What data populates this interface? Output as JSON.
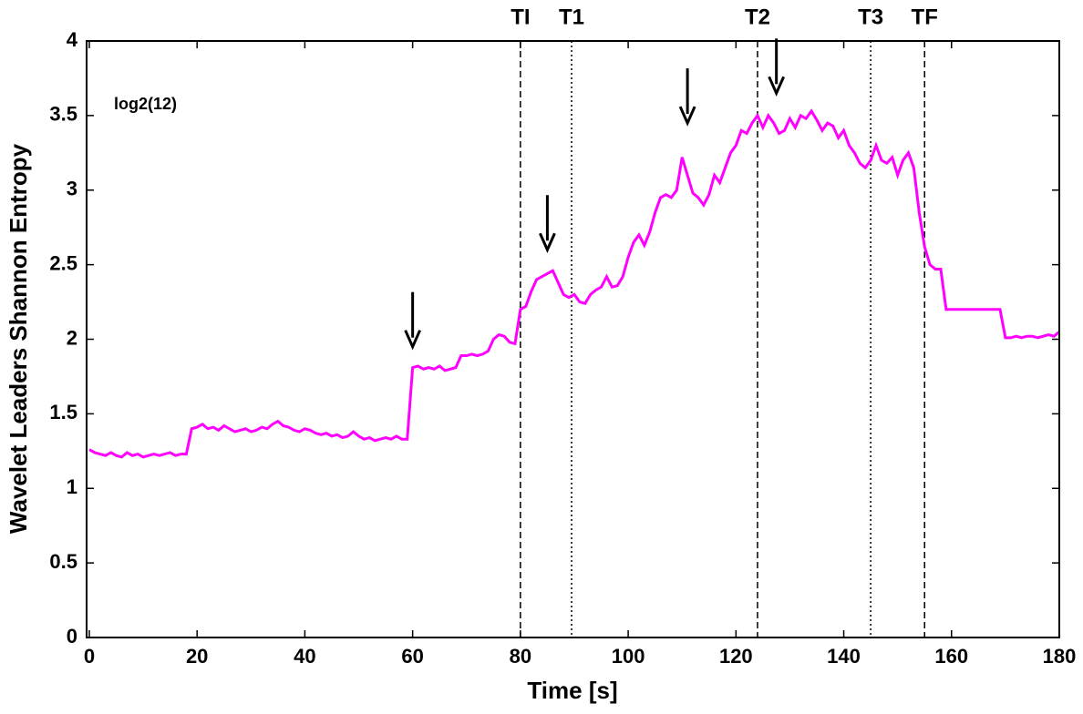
{
  "chart_data": {
    "type": "line",
    "x_label": "Time [s]",
    "y_label": "Wavelet Leaders Shannon Entropy",
    "annotation": "log2(12)",
    "xlim": [
      -0.5,
      180
    ],
    "ylim": [
      0,
      4
    ],
    "xticks": [
      0,
      20,
      40,
      60,
      80,
      100,
      120,
      140,
      160,
      180
    ],
    "yticks": [
      0,
      0.5,
      1,
      1.5,
      2,
      2.5,
      3,
      3.5,
      4
    ],
    "x": [
      0,
      1,
      2,
      3,
      4,
      5,
      6,
      7,
      8,
      9,
      10,
      11,
      12,
      13,
      14,
      15,
      16,
      17,
      18,
      19,
      20,
      21,
      22,
      23,
      24,
      25,
      26,
      27,
      28,
      29,
      30,
      31,
      32,
      33,
      34,
      35,
      36,
      37,
      38,
      39,
      40,
      41,
      42,
      43,
      44,
      45,
      46,
      47,
      48,
      49,
      50,
      51,
      52,
      53,
      54,
      55,
      56,
      57,
      58,
      59,
      60,
      61,
      62,
      63,
      64,
      65,
      66,
      67,
      68,
      69,
      70,
      71,
      72,
      73,
      74,
      75,
      76,
      77,
      78,
      79,
      80,
      81,
      82,
      83,
      84,
      85,
      86,
      87,
      88,
      89,
      90,
      91,
      92,
      93,
      94,
      95,
      96,
      97,
      98,
      99,
      100,
      101,
      102,
      103,
      104,
      105,
      106,
      107,
      108,
      109,
      110,
      111,
      112,
      113,
      114,
      115,
      116,
      117,
      118,
      119,
      120,
      121,
      122,
      123,
      124,
      125,
      126,
      127,
      128,
      129,
      130,
      131,
      132,
      133,
      134,
      135,
      136,
      137,
      138,
      139,
      140,
      141,
      142,
      143,
      144,
      145,
      146,
      147,
      148,
      149,
      150,
      151,
      152,
      153,
      154,
      155,
      156,
      157,
      158,
      159,
      160,
      161,
      162,
      163,
      164,
      165,
      166,
      167,
      168,
      169,
      170,
      171,
      172,
      173,
      174,
      175,
      176,
      177,
      178,
      179,
      180
    ],
    "series": [
      {
        "name": "entropy",
        "color": "#ff00ff",
        "values": [
          1.26,
          1.24,
          1.23,
          1.22,
          1.24,
          1.22,
          1.21,
          1.24,
          1.22,
          1.23,
          1.21,
          1.22,
          1.23,
          1.22,
          1.23,
          1.24,
          1.22,
          1.23,
          1.23,
          1.4,
          1.41,
          1.43,
          1.4,
          1.41,
          1.39,
          1.42,
          1.4,
          1.38,
          1.39,
          1.4,
          1.38,
          1.39,
          1.41,
          1.4,
          1.43,
          1.45,
          1.42,
          1.41,
          1.39,
          1.38,
          1.4,
          1.39,
          1.37,
          1.36,
          1.37,
          1.35,
          1.36,
          1.34,
          1.35,
          1.38,
          1.35,
          1.33,
          1.34,
          1.32,
          1.33,
          1.34,
          1.33,
          1.35,
          1.33,
          1.33,
          1.81,
          1.82,
          1.8,
          1.81,
          1.8,
          1.82,
          1.79,
          1.8,
          1.81,
          1.89,
          1.89,
          1.9,
          1.89,
          1.9,
          1.92,
          2.0,
          2.03,
          2.02,
          1.98,
          1.97,
          2.2,
          2.22,
          2.32,
          2.4,
          2.42,
          2.44,
          2.46,
          2.38,
          2.3,
          2.28,
          2.3,
          2.25,
          2.24,
          2.3,
          2.33,
          2.35,
          2.42,
          2.35,
          2.36,
          2.42,
          2.55,
          2.65,
          2.7,
          2.63,
          2.72,
          2.85,
          2.95,
          2.97,
          2.95,
          3.0,
          3.22,
          3.1,
          2.98,
          2.95,
          2.9,
          2.97,
          3.1,
          3.05,
          3.15,
          3.25,
          3.3,
          3.4,
          3.38,
          3.45,
          3.5,
          3.42,
          3.5,
          3.45,
          3.38,
          3.4,
          3.48,
          3.42,
          3.5,
          3.48,
          3.53,
          3.47,
          3.4,
          3.45,
          3.43,
          3.35,
          3.4,
          3.3,
          3.25,
          3.18,
          3.15,
          3.2,
          3.3,
          3.2,
          3.18,
          3.22,
          3.1,
          3.2,
          3.25,
          3.15,
          2.85,
          2.62,
          2.5,
          2.47,
          2.47,
          2.2,
          2.2,
          2.2,
          2.2,
          2.2,
          2.2,
          2.2,
          2.2,
          2.2,
          2.2,
          2.2,
          2.01,
          2.01,
          2.02,
          2.01,
          2.02,
          2.02,
          2.01,
          2.02,
          2.03,
          2.02,
          2.05
        ]
      }
    ],
    "vlines": [
      {
        "label": "TI",
        "x": 80,
        "style": "dashed"
      },
      {
        "label": "T1",
        "x": 89.5,
        "style": "dotted"
      },
      {
        "label": "T2",
        "x": 124,
        "style": "dashed"
      },
      {
        "label": "T3",
        "x": 145,
        "style": "dotted"
      },
      {
        "label": "TF",
        "x": 155,
        "style": "dashed"
      }
    ],
    "arrows": [
      {
        "x": 60,
        "y": 1.95
      },
      {
        "x": 85,
        "y": 2.6
      },
      {
        "x": 111,
        "y": 3.45
      },
      {
        "x": 127.5,
        "y": 3.65
      }
    ]
  }
}
